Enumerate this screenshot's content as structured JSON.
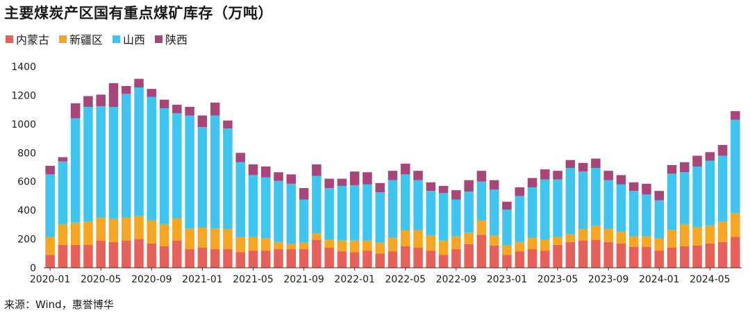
{
  "chart_data": {
    "type": "bar",
    "stacked": true,
    "title": "主要煤炭产区国有重点煤矿库存（万吨）",
    "legend_position": "top-left",
    "grid": false,
    "ylim": [
      0,
      1400
    ],
    "yticks": [
      0,
      200,
      400,
      600,
      800,
      1000,
      1200,
      1400
    ],
    "categories": [
      "2020-01",
      "2020-02",
      "2020-03",
      "2020-04",
      "2020-05",
      "2020-06",
      "2020-07",
      "2020-08",
      "2020-09",
      "2020-10",
      "2020-11",
      "2020-12",
      "2021-01",
      "2021-02",
      "2021-03",
      "2021-04",
      "2021-05",
      "2021-06",
      "2021-07",
      "2021-08",
      "2021-09",
      "2021-10",
      "2021-11",
      "2021-12",
      "2022-01",
      "2022-02",
      "2022-03",
      "2022-04",
      "2022-05",
      "2022-06",
      "2022-07",
      "2022-08",
      "2022-09",
      "2022-10",
      "2022-11",
      "2022-12",
      "2023-01",
      "2023-02",
      "2023-03",
      "2023-04",
      "2023-05",
      "2023-06",
      "2023-07",
      "2023-08",
      "2023-09",
      "2023-10",
      "2023-11",
      "2023-12",
      "2024-01",
      "2024-02",
      "2024-03",
      "2024-04",
      "2024-05",
      "2024-06",
      "2024-07"
    ],
    "xtick_labels": [
      "2020-01",
      "2020-05",
      "2020-09",
      "2021-01",
      "2021-05",
      "2021-09",
      "2022-01",
      "2022-05",
      "2022-09",
      "2023-01",
      "2023-05",
      "2023-09",
      "2024-01",
      "2024-05"
    ],
    "series": [
      {
        "name": "内蒙古",
        "color": "#e8605a",
        "values": [
          90,
          160,
          160,
          160,
          190,
          180,
          190,
          200,
          170,
          150,
          190,
          130,
          140,
          130,
          130,
          110,
          120,
          120,
          130,
          130,
          130,
          195,
          140,
          115,
          110,
          120,
          100,
          115,
          150,
          140,
          120,
          90,
          130,
          165,
          230,
          155,
          90,
          115,
          130,
          120,
          160,
          180,
          190,
          195,
          180,
          170,
          145,
          145,
          120,
          140,
          150,
          155,
          170,
          180,
          215
        ]
      },
      {
        "name": "新疆区",
        "color": "#f5a623",
        "values": [
          125,
          140,
          155,
          160,
          160,
          160,
          160,
          160,
          160,
          155,
          155,
          145,
          140,
          145,
          140,
          105,
          95,
          85,
          50,
          35,
          45,
          45,
          55,
          75,
          80,
          70,
          75,
          95,
          110,
          120,
          105,
          100,
          90,
          80,
          100,
          70,
          65,
          65,
          80,
          75,
          55,
          55,
          80,
          100,
          90,
          80,
          75,
          75,
          85,
          125,
          150,
          130,
          125,
          140,
          165
        ]
      },
      {
        "name": "山西",
        "color": "#3ec6f0",
        "values": [
          435,
          440,
          725,
          800,
          775,
          780,
          860,
          895,
          860,
          805,
          730,
          785,
          700,
          785,
          700,
          520,
          430,
          425,
          425,
          420,
          300,
          400,
          360,
          380,
          385,
          390,
          350,
          400,
          390,
          350,
          310,
          330,
          255,
          285,
          270,
          320,
          250,
          320,
          350,
          420,
          400,
          460,
          400,
          400,
          340,
          330,
          315,
          290,
          265,
          390,
          365,
          420,
          450,
          460,
          650
        ]
      },
      {
        "name": "陕西",
        "color": "#a8467a",
        "values": [
          60,
          30,
          105,
          75,
          80,
          165,
          55,
          60,
          55,
          60,
          60,
          60,
          80,
          90,
          55,
          65,
          75,
          75,
          60,
          65,
          80,
          80,
          65,
          50,
          95,
          85,
          65,
          65,
          75,
          65,
          60,
          50,
          65,
          80,
          75,
          65,
          55,
          60,
          65,
          70,
          60,
          55,
          60,
          65,
          65,
          65,
          60,
          75,
          65,
          60,
          70,
          75,
          60,
          75,
          60
        ]
      }
    ]
  },
  "source_text": "来源：Wind，惠誉博华"
}
